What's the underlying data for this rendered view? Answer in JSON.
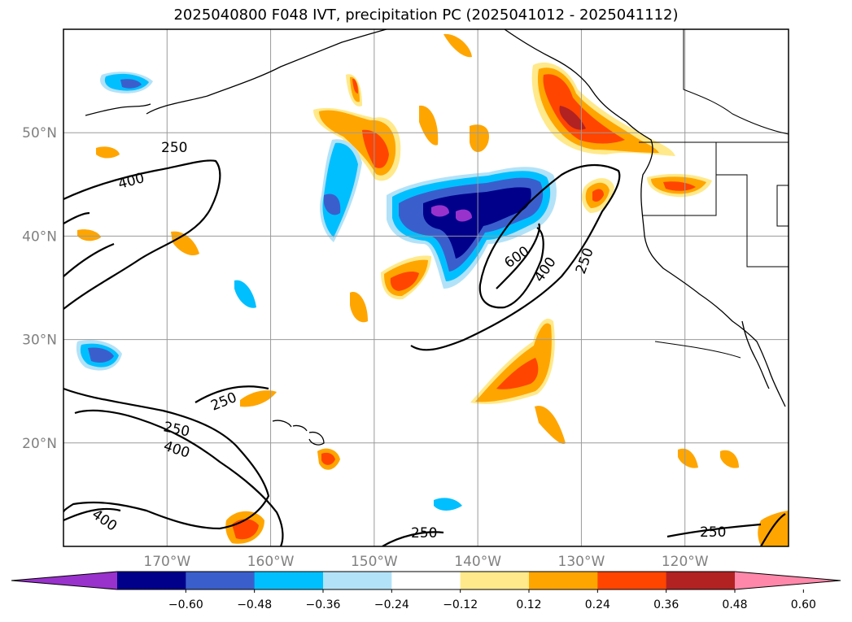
{
  "title": "2025040800 F048 IVT, precipitation PC (2025041012 - 2025041112)",
  "colors": {
    "frame": "#000000",
    "grid": "#9a9a9a",
    "axis_label": "#808080",
    "coast": "#000000",
    "contour": "#000000"
  },
  "map_axes": {
    "longitude_range_degE": [
      -180,
      -110
    ],
    "latitude_range_degN": [
      10,
      60
    ],
    "lat_labels": [
      "20°N",
      "30°N",
      "40°N",
      "50°N"
    ],
    "lat_values": [
      20,
      30,
      40,
      50
    ],
    "lon_labels": [
      "170°W",
      "160°W",
      "150°W",
      "140°W",
      "130°W",
      "120°W"
    ],
    "lon_values": [
      -170,
      -160,
      -150,
      -140,
      -130,
      -120
    ],
    "gridlines": true
  },
  "ivt_contours": {
    "levels": [
      250,
      400,
      600
    ],
    "labels": [
      "250",
      "400",
      "250",
      "250",
      "400",
      "400",
      "600",
      "400",
      "250",
      "250",
      "250"
    ]
  },
  "colorbar": {
    "orientation": "horizontal",
    "extend": "both",
    "tick_labels": [
      "−0.60",
      "−0.48",
      "−0.36",
      "−0.24",
      "−0.12",
      "0.12",
      "0.24",
      "0.36",
      "0.48",
      "0.60"
    ],
    "colors": [
      "#9932cc",
      "#00008b",
      "#3a5fcd",
      "#00bfff",
      "#b2e2f8",
      "#ffffff",
      "#ffe98a",
      "#ffa500",
      "#ff4500",
      "#b22222",
      "#ff88aa"
    ]
  }
}
